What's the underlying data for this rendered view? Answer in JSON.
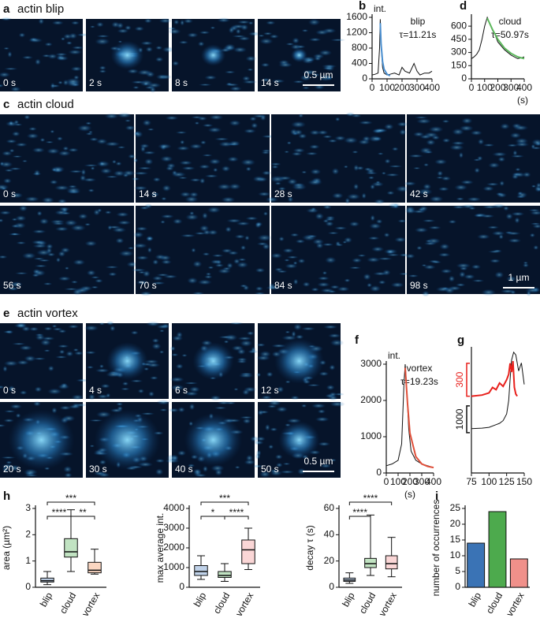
{
  "panels": {
    "a": {
      "label": "a",
      "title": "actin blip",
      "times": [
        "0 s",
        "2 s",
        "8 s",
        "14 s"
      ],
      "scale_bar": "0.5 µm"
    },
    "c": {
      "label": "c",
      "title": "actin cloud",
      "times": [
        "0 s",
        "14 s",
        "28 s",
        "42 s",
        "56 s",
        "70 s",
        "84 s",
        "98 s"
      ],
      "scale_bar": "1 µm"
    },
    "e": {
      "label": "e",
      "title": "actin vortex",
      "times": [
        "0 s",
        "4 s",
        "6 s",
        "12 s",
        "20 s",
        "30 s",
        "40 s",
        "50 s"
      ],
      "scale_bar": "0.5 µm"
    }
  },
  "chart_data": [
    {
      "type": "line",
      "label": "b",
      "ylabel": "int.",
      "annotation": [
        "blip",
        "τ=11.21s"
      ],
      "xlim": [
        0,
        400
      ],
      "xticks": [
        0,
        100,
        200,
        300,
        400
      ],
      "ylim": [
        0,
        1600
      ],
      "yticks": [
        0,
        400,
        800,
        1200,
        1600
      ],
      "series": [
        {
          "color": "#111111",
          "x": [
            0,
            20,
            40,
            50,
            55,
            60,
            70,
            80,
            100,
            120,
            150,
            180,
            200,
            220,
            250,
            280,
            300,
            320,
            350,
            380,
            400
          ],
          "values": [
            100,
            120,
            150,
            800,
            1550,
            900,
            300,
            150,
            100,
            120,
            150,
            100,
            300,
            200,
            150,
            400,
            200,
            100,
            150,
            150,
            200
          ]
        },
        {
          "color": "#4a8fd0",
          "x": [
            55,
            60,
            70,
            80,
            100,
            120
          ],
          "values": [
            1450,
            900,
            450,
            250,
            120,
            80
          ]
        }
      ]
    },
    {
      "type": "line",
      "label": "d",
      "xlabel": "(s)",
      "annotation": [
        "cloud",
        "τ=50.97s"
      ],
      "xlim": [
        0,
        400
      ],
      "xticks": [
        0,
        100,
        200,
        300,
        400
      ],
      "ylim": [
        0,
        700
      ],
      "yticks": [
        0,
        150,
        300,
        450,
        600
      ],
      "series": [
        {
          "color": "#111111",
          "x": [
            0,
            20,
            40,
            60,
            80,
            100,
            120,
            140,
            160,
            180,
            200,
            250,
            300,
            350,
            380,
            400
          ],
          "values": [
            230,
            250,
            280,
            330,
            450,
            600,
            700,
            620,
            550,
            500,
            420,
            330,
            270,
            230,
            240,
            250
          ]
        },
        {
          "color": "#5cb85c",
          "x": [
            120,
            160,
            200,
            250,
            300,
            350,
            400
          ],
          "values": [
            690,
            560,
            450,
            350,
            290,
            250,
            230
          ]
        }
      ]
    },
    {
      "type": "line",
      "label": "f",
      "ylabel": "int.",
      "xlabel": "(s)",
      "annotation": [
        "vortex",
        "τ=19.23s"
      ],
      "xlim": [
        0,
        400
      ],
      "xticks": [
        0,
        100,
        200,
        300,
        400
      ],
      "ylim": [
        0,
        3000
      ],
      "yticks": [
        0,
        1000,
        2000,
        3000
      ],
      "series": [
        {
          "color": "#111111",
          "x": [
            0,
            50,
            100,
            130,
            150,
            160,
            170,
            190,
            210,
            250,
            300,
            350,
            400
          ],
          "values": [
            200,
            250,
            350,
            800,
            2500,
            3000,
            2500,
            1200,
            600,
            350,
            250,
            200,
            150
          ]
        },
        {
          "color": "#e0503a",
          "x": [
            160,
            180,
            200,
            250,
            300,
            350,
            400
          ],
          "values": [
            2900,
            1900,
            1100,
            450,
            250,
            180,
            150
          ]
        }
      ]
    },
    {
      "type": "line",
      "label": "g",
      "xlim": [
        75,
        150
      ],
      "xticks": [
        75,
        100,
        125,
        150
      ],
      "ylim": [
        -1500,
        3200
      ],
      "y2lim": [
        -700,
        450
      ],
      "scale_bars": [
        {
          "value": 300,
          "color": "#e8201c",
          "axis": "y2"
        },
        {
          "value": 1000,
          "color": "#111111",
          "axis": "y"
        }
      ],
      "series": [
        {
          "color": "#111111",
          "x": [
            75,
            90,
            100,
            110,
            115,
            120,
            125,
            128,
            130,
            132,
            135,
            138,
            142,
            146,
            150
          ],
          "values": [
            150,
            170,
            200,
            300,
            350,
            450,
            700,
            1200,
            2000,
            2700,
            3000,
            2900,
            2300,
            2600,
            1800
          ]
        },
        {
          "color": "#e8201c",
          "axis": "y2",
          "x": [
            75,
            90,
            100,
            105,
            110,
            115,
            120,
            125,
            128,
            130,
            132,
            134,
            136,
            138,
            140
          ],
          "values": [
            0,
            10,
            30,
            80,
            60,
            120,
            90,
            150,
            200,
            300,
            220,
            320,
            80,
            20,
            0
          ]
        }
      ]
    },
    {
      "type": "box",
      "label": "h",
      "ylabel": "area (µm²)",
      "categories": [
        "blip",
        "cloud",
        "vortex"
      ],
      "colors": [
        "#4a7fc1",
        "#4caf50",
        "#f08a4c"
      ],
      "ylim": [
        0,
        3
      ],
      "yticks": [
        0,
        1,
        2,
        3
      ],
      "boxes": [
        {
          "min": 0.1,
          "q1": 0.2,
          "median": 0.25,
          "q3": 0.35,
          "max": 0.6
        },
        {
          "min": 0.6,
          "q1": 1.15,
          "median": 1.35,
          "q3": 1.85,
          "max": 2.95
        },
        {
          "min": 0.5,
          "q1": 0.55,
          "median": 0.65,
          "q3": 0.95,
          "max": 1.45
        }
      ],
      "significance": [
        {
          "pair": [
            "blip",
            "vortex"
          ],
          "label": "***"
        },
        {
          "pair": [
            "blip",
            "cloud"
          ],
          "label": "****"
        },
        {
          "pair": [
            "cloud",
            "vortex"
          ],
          "label": "**"
        }
      ]
    },
    {
      "type": "box",
      "ylabel": "max average int.",
      "categories": [
        "blip",
        "cloud",
        "vortex"
      ],
      "colors": [
        "#4a7fc1",
        "#4caf50",
        "#f08a8a"
      ],
      "ylim": [
        0,
        4000
      ],
      "yticks": [
        0,
        1000,
        2000,
        3000,
        4000
      ],
      "boxes": [
        {
          "min": 400,
          "q1": 600,
          "median": 800,
          "q3": 1100,
          "max": 1600
        },
        {
          "min": 300,
          "q1": 500,
          "median": 600,
          "q3": 800,
          "max": 1200
        },
        {
          "min": 900,
          "q1": 1200,
          "median": 1900,
          "q3": 2400,
          "max": 3000
        }
      ],
      "significance": [
        {
          "pair": [
            "blip",
            "vortex"
          ],
          "label": "***"
        },
        {
          "pair": [
            "blip",
            "cloud"
          ],
          "label": "*"
        },
        {
          "pair": [
            "cloud",
            "vortex"
          ],
          "label": "****"
        }
      ]
    },
    {
      "type": "box",
      "ylabel": "decay τ (s)",
      "categories": [
        "blip",
        "cloud",
        "vortex"
      ],
      "colors": [
        "#4a7fc1",
        "#4caf50",
        "#f08a8a"
      ],
      "ylim": [
        0,
        60
      ],
      "yticks": [
        0,
        20,
        40,
        60
      ],
      "boxes": [
        {
          "min": 3,
          "q1": 4.5,
          "median": 5.5,
          "q3": 7,
          "max": 11
        },
        {
          "min": 9,
          "q1": 15,
          "median": 18,
          "q3": 22,
          "max": 55
        },
        {
          "min": 8,
          "q1": 14,
          "median": 18,
          "q3": 24,
          "max": 38
        }
      ],
      "significance": [
        {
          "pair": [
            "blip",
            "vortex"
          ],
          "label": "****"
        },
        {
          "pair": [
            "blip",
            "cloud"
          ],
          "label": "****"
        }
      ]
    },
    {
      "type": "bar",
      "label": "i",
      "ylabel": "number of occurrences",
      "categories": [
        "blip",
        "cloud",
        "vortex"
      ],
      "colors": [
        "#3a73b5",
        "#4daa4d",
        "#f0908a"
      ],
      "values": [
        14,
        24,
        9
      ],
      "ylim": [
        0,
        25
      ],
      "yticks": [
        0,
        5,
        10,
        15,
        20,
        25
      ]
    }
  ]
}
